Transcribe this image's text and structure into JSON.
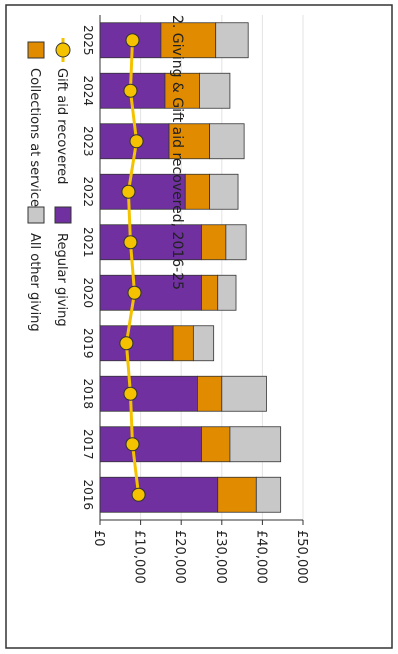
{
  "chart_data": {
    "type": "bar",
    "title": "2. Giving & Gift aid recovered, 2016-25",
    "categories": [
      "2016",
      "2017",
      "2018",
      "2019",
      "2020",
      "2021",
      "2022",
      "2023",
      "2024",
      "2025"
    ],
    "series": [
      {
        "name": "Regular giving",
        "kind": "bar",
        "color": "#7030a0",
        "values": [
          29000,
          25000,
          24000,
          18000,
          25000,
          25000,
          21000,
          17000,
          16000,
          15000
        ]
      },
      {
        "name": "Collections at services",
        "kind": "bar",
        "color": "#e08b00",
        "values": [
          9500,
          7000,
          6000,
          5000,
          4000,
          6000,
          6000,
          10000,
          8500,
          13500
        ]
      },
      {
        "name": "All other giving",
        "kind": "bar",
        "color": "#c8c8c8",
        "values": [
          6000,
          12500,
          11000,
          5000,
          4500,
          5000,
          7000,
          8500,
          7500,
          8000
        ]
      },
      {
        "name": "Gift aid recovered",
        "kind": "line",
        "color": "#f5c200",
        "values": [
          9500,
          8000,
          7500,
          6500,
          8500,
          7500,
          7000,
          9000,
          7500,
          8000
        ]
      }
    ],
    "value_axis": {
      "min": 0,
      "max": 50000,
      "ticks": [
        0,
        10000,
        20000,
        30000,
        40000,
        50000
      ],
      "tick_labels": [
        "£0",
        "£10,000",
        "£20,000",
        "£30,000",
        "£40,000",
        "£50,000"
      ]
    },
    "stacked": true,
    "grid": true,
    "orientation": "rotated 90° clockwise (stacked columns displayed horizontally)",
    "legend": {
      "placement": "bottom",
      "items": [
        {
          "label": "Gift aid recovered",
          "color": "#f5c200",
          "marker": "line-circle"
        },
        {
          "label": "Collections at services",
          "color": "#e08b00",
          "marker": "square"
        },
        {
          "label": "Regular giving",
          "color": "#7030a0",
          "marker": "square"
        },
        {
          "label": "All other giving",
          "color": "#c8c8c8",
          "marker": "square"
        }
      ]
    }
  }
}
